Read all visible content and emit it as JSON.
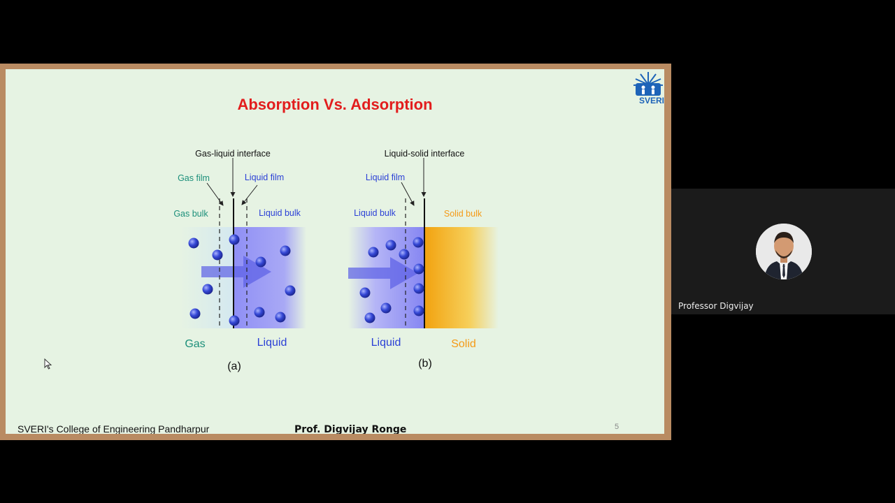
{
  "slide": {
    "title": "Absorption Vs. Adsorption",
    "logo_text": "SVERI",
    "footer_left": "SVERI's College of Engineering Pandharpur",
    "footer_center": "Prof. Digvijay Ronge",
    "page_number": "5"
  },
  "figure_a": {
    "interface_label": "Gas-liquid interface",
    "gas_film_label": "Gas film",
    "liquid_film_label": "Liquid film",
    "gas_bulk_label": "Gas bulk",
    "liquid_bulk_label": "Liquid bulk",
    "left_phase": "Gas",
    "right_phase": "Liquid",
    "caption": "(a)"
  },
  "figure_b": {
    "interface_label": "Liquid-solid interface",
    "liquid_film_label": "Liquid film",
    "liquid_bulk_label": "Liquid bulk",
    "solid_bulk_label": "Solid bulk",
    "left_phase": "Liquid",
    "right_phase": "Solid",
    "caption": "(b)"
  },
  "participant": {
    "name": "Professor Digvijay"
  },
  "colors": {
    "title": "#e21d1d",
    "gas_text": "#1c8f7a",
    "liquid_text": "#2a3fd6",
    "solid_text": "#f59a16",
    "molecule": "#2e3fd0",
    "slide_bg": "#e6f3e3",
    "frame": "#b98b62"
  }
}
